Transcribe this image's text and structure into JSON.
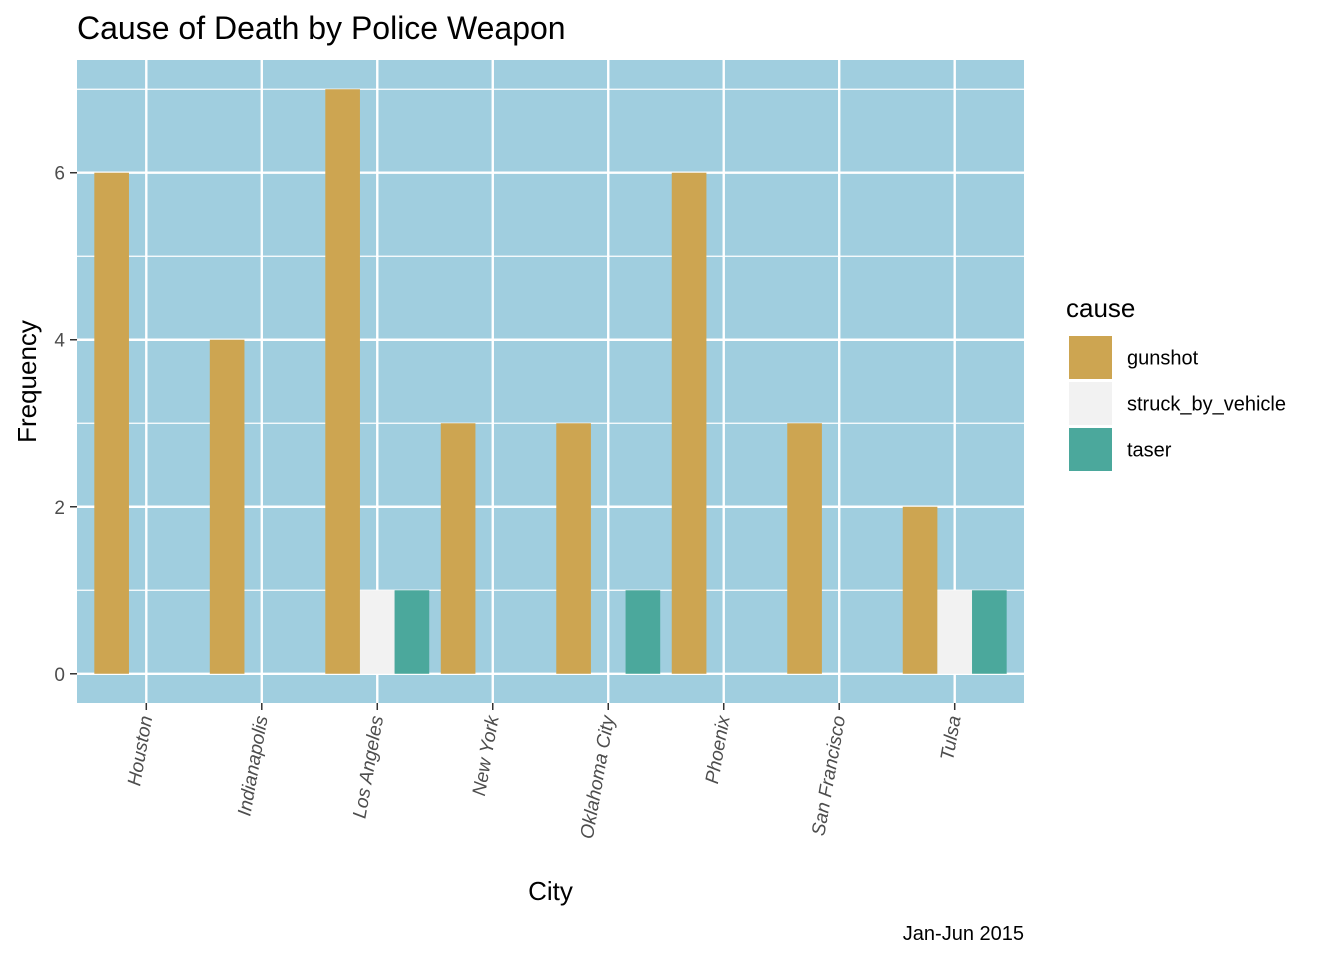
{
  "chart_data": {
    "type": "bar",
    "title": "Cause of Death by Police Weapon",
    "xlabel": "City",
    "ylabel": "Frequency",
    "caption": "Jan-Jun 2015",
    "categories": [
      "Houston",
      "Indianapolis",
      "Los Angeles",
      "New York",
      "Oklahoma City",
      "Phoenix",
      "San Francisco",
      "Tulsa"
    ],
    "series": [
      {
        "name": "gunshot",
        "color": "#CDA551",
        "values": [
          6,
          4,
          7,
          3,
          3,
          6,
          3,
          2
        ]
      },
      {
        "name": "struck_by_vehicle",
        "color": "#F2F2F2",
        "values": [
          0,
          0,
          1,
          0,
          0,
          0,
          0,
          1
        ]
      },
      {
        "name": "taser",
        "color": "#4BA89C",
        "values": [
          0,
          0,
          1,
          0,
          1,
          0,
          0,
          1
        ]
      }
    ],
    "ylim": [
      -0.35,
      7.35
    ],
    "yticks": [
      0,
      2,
      4,
      6
    ],
    "legend": {
      "title": "cause",
      "placement": "right"
    },
    "grid": true,
    "panel_color": "#A0CEDF",
    "grid_color": "#FFFFFF"
  }
}
